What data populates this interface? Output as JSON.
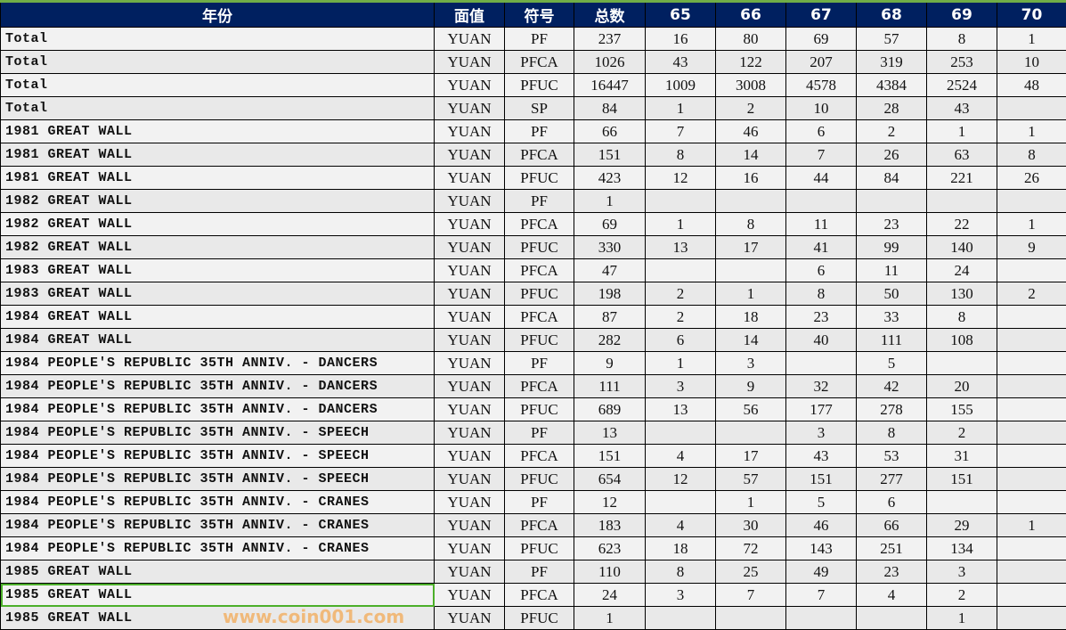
{
  "headers": [
    "年份",
    "面值",
    "符号",
    "总数",
    "65",
    "66",
    "67",
    "68",
    "69",
    "70"
  ],
  "rows": [
    [
      "Total",
      "YUAN",
      "PF",
      "237",
      "16",
      "80",
      "69",
      "57",
      "8",
      "1"
    ],
    [
      "Total",
      "YUAN",
      "PFCA",
      "1026",
      "43",
      "122",
      "207",
      "319",
      "253",
      "10"
    ],
    [
      "Total",
      "YUAN",
      "PFUC",
      "16447",
      "1009",
      "3008",
      "4578",
      "4384",
      "2524",
      "48"
    ],
    [
      "Total",
      "YUAN",
      "SP",
      "84",
      "1",
      "2",
      "10",
      "28",
      "43",
      ""
    ],
    [
      "1981 GREAT WALL",
      "YUAN",
      "PF",
      "66",
      "7",
      "46",
      "6",
      "2",
      "1",
      "1"
    ],
    [
      "1981 GREAT WALL",
      "YUAN",
      "PFCA",
      "151",
      "8",
      "14",
      "7",
      "26",
      "63",
      "8"
    ],
    [
      "1981 GREAT WALL",
      "YUAN",
      "PFUC",
      "423",
      "12",
      "16",
      "44",
      "84",
      "221",
      "26"
    ],
    [
      "1982 GREAT WALL",
      "YUAN",
      "PF",
      "1",
      "",
      "",
      "",
      "",
      "",
      ""
    ],
    [
      "1982 GREAT WALL",
      "YUAN",
      "PFCA",
      "69",
      "1",
      "8",
      "11",
      "23",
      "22",
      "1"
    ],
    [
      "1982 GREAT WALL",
      "YUAN",
      "PFUC",
      "330",
      "13",
      "17",
      "41",
      "99",
      "140",
      "9"
    ],
    [
      "1983 GREAT WALL",
      "YUAN",
      "PFCA",
      "47",
      "",
      "",
      "6",
      "11",
      "24",
      ""
    ],
    [
      "1983 GREAT WALL",
      "YUAN",
      "PFUC",
      "198",
      "2",
      "1",
      "8",
      "50",
      "130",
      "2"
    ],
    [
      "1984 GREAT WALL",
      "YUAN",
      "PFCA",
      "87",
      "2",
      "18",
      "23",
      "33",
      "8",
      ""
    ],
    [
      "1984 GREAT WALL",
      "YUAN",
      "PFUC",
      "282",
      "6",
      "14",
      "40",
      "111",
      "108",
      ""
    ],
    [
      "1984 PEOPLE'S REPUBLIC 35TH ANNIV. - DANCERS",
      "YUAN",
      "PF",
      "9",
      "1",
      "3",
      "",
      "5",
      "",
      ""
    ],
    [
      "1984 PEOPLE'S REPUBLIC 35TH ANNIV. - DANCERS",
      "YUAN",
      "PFCA",
      "111",
      "3",
      "9",
      "32",
      "42",
      "20",
      ""
    ],
    [
      "1984 PEOPLE'S REPUBLIC 35TH ANNIV. - DANCERS",
      "YUAN",
      "PFUC",
      "689",
      "13",
      "56",
      "177",
      "278",
      "155",
      ""
    ],
    [
      "1984 PEOPLE'S REPUBLIC 35TH ANNIV. - SPEECH",
      "YUAN",
      "PF",
      "13",
      "",
      "",
      "3",
      "8",
      "2",
      ""
    ],
    [
      "1984 PEOPLE'S REPUBLIC 35TH ANNIV. - SPEECH",
      "YUAN",
      "PFCA",
      "151",
      "4",
      "17",
      "43",
      "53",
      "31",
      ""
    ],
    [
      "1984 PEOPLE'S REPUBLIC 35TH ANNIV. - SPEECH",
      "YUAN",
      "PFUC",
      "654",
      "12",
      "57",
      "151",
      "277",
      "151",
      ""
    ],
    [
      "1984 PEOPLE'S REPUBLIC 35TH ANNIV. - CRANES",
      "YUAN",
      "PF",
      "12",
      "",
      "1",
      "5",
      "6",
      "",
      ""
    ],
    [
      "1984 PEOPLE'S REPUBLIC 35TH ANNIV. - CRANES",
      "YUAN",
      "PFCA",
      "183",
      "4",
      "30",
      "46",
      "66",
      "29",
      "1"
    ],
    [
      "1984 PEOPLE'S REPUBLIC 35TH ANNIV. - CRANES",
      "YUAN",
      "PFUC",
      "623",
      "18",
      "72",
      "143",
      "251",
      "134",
      ""
    ],
    [
      "1985 GREAT WALL",
      "YUAN",
      "PF",
      "110",
      "8",
      "25",
      "49",
      "23",
      "3",
      ""
    ],
    [
      "1985 GREAT WALL",
      "YUAN",
      "PFCA",
      "24",
      "3",
      "7",
      "7",
      "4",
      "2",
      ""
    ],
    [
      "1985 GREAT WALL",
      "YUAN",
      "PFUC",
      "1",
      "",
      "",
      "",
      "",
      "1",
      ""
    ]
  ],
  "selected_row": 24,
  "watermark": "www.coin001.com"
}
